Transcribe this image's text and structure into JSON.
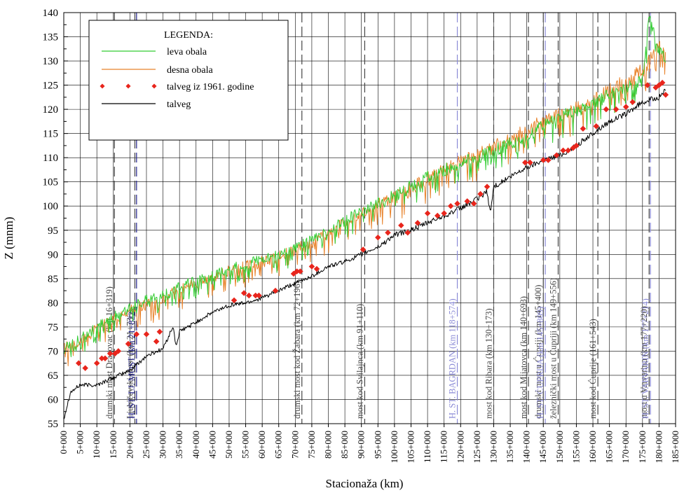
{
  "chart_data": {
    "type": "line",
    "xlabel": "Stacionaža (km)",
    "ylabel": "Z (mnm)",
    "xlim": [
      0,
      185
    ],
    "ylim": [
      55,
      140
    ],
    "y_ticks": [
      55,
      60,
      65,
      70,
      75,
      80,
      85,
      90,
      95,
      100,
      105,
      110,
      115,
      120,
      125,
      130,
      135,
      140
    ],
    "x_ticks": [
      0,
      5,
      10,
      15,
      20,
      25,
      30,
      35,
      40,
      45,
      50,
      55,
      60,
      65,
      70,
      75,
      80,
      85,
      90,
      95,
      100,
      105,
      110,
      115,
      120,
      125,
      130,
      135,
      140,
      145,
      150,
      155,
      160,
      165,
      170,
      175,
      180,
      185
    ],
    "x_tick_labels": [
      "0+000",
      "5+000",
      "10+000",
      "15+000",
      "20+000",
      "25+000",
      "30+000",
      "35+000",
      "40+000",
      "45+000",
      "50+000",
      "55+000",
      "60+000",
      "65+000",
      "70+000",
      "75+000",
      "80+000",
      "85+000",
      "90+000",
      "95+000",
      "100+000",
      "105+000",
      "110+000",
      "115+000",
      "120+000",
      "125+000",
      "130+000",
      "135+000",
      "140+000",
      "145+000",
      "150+000",
      "155+000",
      "160+000",
      "165+000",
      "170+000",
      "175+000",
      "180+000",
      "185+000"
    ],
    "grid": true,
    "legend": {
      "title": "LEGENDA:",
      "placement": "top-left",
      "entries": [
        {
          "label": "leva obala",
          "color": "#33cc33",
          "style": "line"
        },
        {
          "label": "desna obala",
          "color": "#e8822a",
          "style": "line"
        },
        {
          "label": "talveg iz 1961. godine",
          "color": "#e8251c",
          "style": "diamond"
        },
        {
          "label": "talveg",
          "color": "#000000",
          "style": "line"
        }
      ]
    },
    "series": [
      {
        "name": "leva obala",
        "color": "#33cc33",
        "x": [
          0,
          5,
          10,
          15,
          20,
          25,
          30,
          35,
          40,
          45,
          50,
          55,
          60,
          65,
          70,
          75,
          80,
          85,
          90,
          95,
          100,
          105,
          110,
          115,
          120,
          125,
          130,
          135,
          140,
          145,
          150,
          155,
          160,
          165,
          170,
          175,
          177,
          180,
          182
        ],
        "y": [
          70.5,
          72.5,
          75,
          77,
          79,
          80.5,
          82,
          83.5,
          84.5,
          85.5,
          87,
          88,
          89,
          90,
          91.5,
          93,
          95,
          97,
          99,
          100.5,
          102,
          104,
          106,
          107.5,
          109,
          110,
          111.5,
          113,
          114.5,
          116.5,
          118.5,
          119.5,
          121,
          123,
          124.5,
          126,
          139,
          132,
          130
        ]
      },
      {
        "name": "desna obala",
        "color": "#e8822a",
        "x": [
          0,
          5,
          10,
          15,
          20,
          25,
          30,
          35,
          40,
          45,
          50,
          55,
          60,
          65,
          70,
          75,
          80,
          85,
          90,
          95,
          100,
          105,
          110,
          115,
          120,
          125,
          130,
          135,
          140,
          145,
          150,
          155,
          160,
          165,
          170,
          175,
          180,
          182
        ],
        "y": [
          70.5,
          72,
          74.5,
          76.5,
          78.5,
          79.5,
          81,
          82.5,
          84,
          85,
          86.5,
          87.5,
          88.5,
          89.5,
          91,
          92.5,
          94.5,
          96.5,
          98.5,
          100,
          101.5,
          103.5,
          105.5,
          107.5,
          109,
          110.5,
          112,
          114,
          115.5,
          117.5,
          119,
          120,
          121.5,
          124,
          126,
          128,
          133,
          131
        ]
      },
      {
        "name": "talveg iz 1961. godine",
        "color": "#e8251c",
        "x": [
          4.5,
          6.5,
          10,
          11.5,
          12.5,
          14,
          15.5,
          16.5,
          19.5,
          22,
          25,
          28,
          29,
          51.5,
          54.5,
          56,
          58,
          59,
          64,
          69.5,
          70.5,
          71.5,
          75,
          76.5,
          90.5,
          95,
          98,
          102,
          104,
          107,
          110,
          113,
          115,
          117,
          119,
          122,
          124,
          126,
          128,
          139.5,
          141,
          145,
          146.5,
          149,
          151,
          152.5,
          154,
          155,
          157,
          161,
          164,
          167,
          170,
          172,
          176.5,
          179,
          180,
          181,
          182
        ],
        "y": [
          67.5,
          66.5,
          67.5,
          68.5,
          68.5,
          69.5,
          69.5,
          70,
          71.5,
          73.5,
          73.5,
          72,
          74,
          80.5,
          82,
          81.5,
          81.5,
          81.5,
          82.5,
          86,
          86.5,
          86.5,
          87.5,
          87,
          91,
          93.5,
          94.5,
          96,
          94.5,
          96.5,
          98.5,
          98,
          98.5,
          100,
          100.5,
          101,
          100.5,
          102.5,
          104,
          109,
          109,
          109.5,
          109.5,
          110.5,
          111.5,
          111.5,
          112,
          112.5,
          116,
          116.5,
          120,
          120,
          120.5,
          121.5,
          125,
          124.5,
          125,
          125.5,
          123
        ]
      },
      {
        "name": "talveg",
        "color": "#000000",
        "x": [
          0,
          2,
          5,
          10,
          15,
          20,
          25,
          30,
          33,
          34,
          35,
          40,
          45,
          50,
          55,
          60,
          65,
          70,
          75,
          80,
          85,
          90,
          95,
          100,
          105,
          110,
          115,
          120,
          125,
          128,
          129,
          130,
          135,
          140,
          145,
          150,
          155,
          160,
          165,
          170,
          175,
          180,
          182
        ],
        "y": [
          56,
          61.5,
          63,
          63,
          64.5,
          66,
          69,
          70.5,
          75,
          71,
          74,
          76,
          78,
          79.5,
          80,
          81,
          82.5,
          84,
          85.5,
          87.5,
          88.5,
          90,
          91.5,
          94,
          95,
          96.5,
          98,
          99.5,
          101.5,
          103,
          98.5,
          104,
          106,
          108,
          109.5,
          110.5,
          112.5,
          115,
          117.5,
          119,
          121.5,
          122.5,
          124
        ]
      }
    ],
    "vertical_markers": [
      {
        "x": 15.3,
        "label": "drumski most Dragovac (km 16+319)",
        "color": "#444444"
      },
      {
        "x": 21.5,
        "label": "Ljubičevski most (km 21+735)",
        "color": "#444444"
      },
      {
        "x": 22.0,
        "label": "H. ST. LJ. MOST (km 21+822)",
        "color": "#22228a"
      },
      {
        "x": 72.0,
        "label": "drumski most kod Žabara (km 72+196)",
        "color": "#444444"
      },
      {
        "x": 91.0,
        "label": "most kod Svilajnca (km 91+110)",
        "color": "#444444"
      },
      {
        "x": 119.0,
        "label": "H. ST. BAGRDAN (km 118+574)",
        "color": "#8a8ad6"
      },
      {
        "x": 130.0,
        "label": "most kod Ribara (km 130+173)",
        "color": "#444444"
      },
      {
        "x": 140.5,
        "label": "most kod Mijatovca (km 140+693)",
        "color": "#444444"
      },
      {
        "x": 145.0,
        "label": "drumski most u Ćupriji (km 145+400)",
        "color": "#444444"
      },
      {
        "x": 145.6,
        "label": "H. ST. ĆUPRIJA (km 145+809)",
        "color": "#8a8ad6"
      },
      {
        "x": 149.5,
        "label": "železnički most u Ćupriji (km 149+556)",
        "color": "#444444"
      },
      {
        "x": 161.5,
        "label": "most kod Ćuprije (161+543)",
        "color": "#444444"
      },
      {
        "x": 177.0,
        "label": "most u Varvarinu (km 177+220)",
        "color": "#444444"
      },
      {
        "x": 177.4,
        "label": "H. ST. VARVARIN (km 177+214)",
        "color": "#8a8ad6"
      }
    ]
  }
}
